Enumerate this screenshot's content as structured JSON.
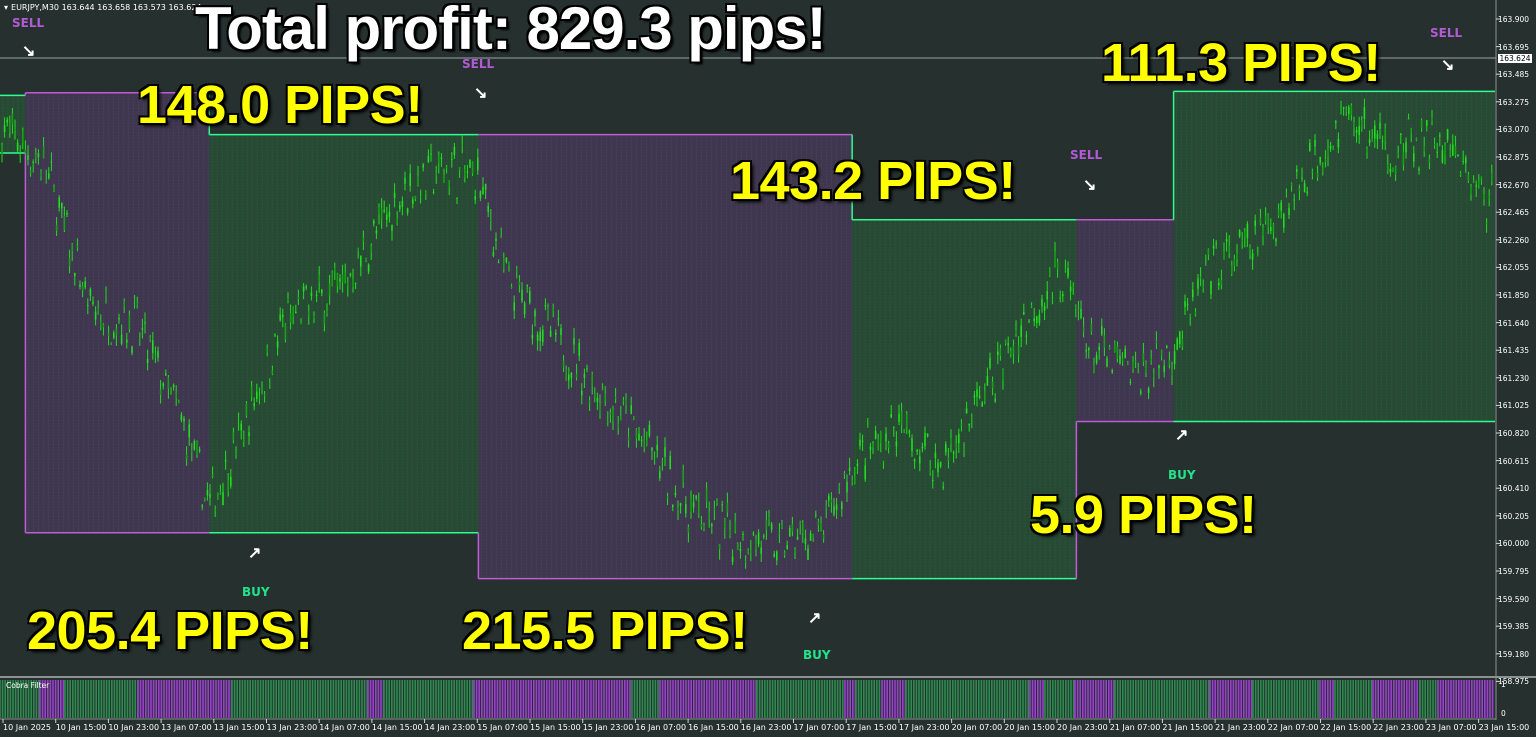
{
  "chart_header": {
    "symbol_timeframe": "EURJPY,M30",
    "ohlc": "163.644 163.658 163.573 163.624"
  },
  "headline": "Total profit: 829.3 pips!",
  "trade_labels": [
    {
      "id": "pips-1",
      "text": "148.0 PIPS!"
    },
    {
      "id": "pips-2",
      "text": "143.2 PIPS!"
    },
    {
      "id": "pips-3",
      "text": "111.3 PIPS!"
    },
    {
      "id": "pips-4",
      "text": "205.4 PIPS!"
    },
    {
      "id": "pips-5",
      "text": "215.5 PIPS!"
    },
    {
      "id": "pips-6",
      "text": "5.9 PIPS!"
    }
  ],
  "signals": {
    "sell_1": "SELL",
    "sell_2": "SELL",
    "sell_3": "SELL",
    "sell_4": "SELL",
    "buy_1": "BUY",
    "buy_2": "BUY",
    "buy_3": "BUY"
  },
  "price_axis": {
    "ticks": [
      "163.900",
      "163.695",
      "163.485",
      "163.275",
      "163.070",
      "162.875",
      "162.670",
      "162.465",
      "162.260",
      "162.055",
      "161.850",
      "161.640",
      "161.435",
      "161.230",
      "161.025",
      "160.820",
      "160.615",
      "160.410",
      "160.205",
      "160.000",
      "159.795",
      "159.590",
      "159.385",
      "159.180",
      "158.975"
    ],
    "current_price": "163.624"
  },
  "time_axis": {
    "ticks": [
      "10 Jan 2025",
      "10 Jan 15:00",
      "10 Jan 23:00",
      "13 Jan 07:00",
      "13 Jan 15:00",
      "13 Jan 23:00",
      "14 Jan 07:00",
      "14 Jan 15:00",
      "14 Jan 23:00",
      "15 Jan 07:00",
      "15 Jan 15:00",
      "15 Jan 23:00",
      "16 Jan 07:00",
      "16 Jan 15:00",
      "16 Jan 23:00",
      "17 Jan 07:00",
      "17 Jan 15:00",
      "17 Jan 23:00",
      "20 Jan 07:00",
      "20 Jan 15:00",
      "20 Jan 23:00",
      "21 Jan 07:00",
      "21 Jan 15:00",
      "21 Jan 23:00",
      "22 Jan 07:00",
      "22 Jan 15:00",
      "22 Jan 23:00",
      "23 Jan 07:00",
      "23 Jan 15:00"
    ]
  },
  "subwindow": {
    "label": "Cobra Filter",
    "scale_top": "1",
    "scale_bottom": "0"
  },
  "colors": {
    "background": "#26312f",
    "bull_band": "#2dff8e",
    "bear_band": "#c05bd8",
    "candle": "#22dd22",
    "filter_green": "#2e8a4e",
    "filter_purple": "#9b3fcf",
    "headline_text": "#ffffff",
    "pips_text": "#ffff00"
  },
  "chart_data": {
    "type": "candlestick",
    "symbol": "EURJPY",
    "timeframe": "M30",
    "y_range": [
      158.975,
      163.9
    ],
    "band_segments": [
      {
        "dir": "up",
        "t": [
          0,
          0.017
        ],
        "upper": 163.34,
        "lower": 162.9
      },
      {
        "dir": "down",
        "t": [
          0.017,
          0.14
        ],
        "upper": 163.36,
        "lower": 160.0
      },
      {
        "dir": "up",
        "t": [
          0.14,
          0.32
        ],
        "upper": 163.04,
        "lower": 160.0
      },
      {
        "dir": "down",
        "t": [
          0.32,
          0.57
        ],
        "upper": 163.04,
        "lower": 159.65
      },
      {
        "dir": "up",
        "t": [
          0.57,
          0.72
        ],
        "upper": 162.39,
        "lower": 159.65
      },
      {
        "dir": "down",
        "t": [
          0.72,
          0.785
        ],
        "upper": 162.39,
        "lower": 160.85
      },
      {
        "dir": "up",
        "t": [
          0.785,
          1.0
        ],
        "upper": 163.37,
        "lower": 160.85
      }
    ]
  }
}
